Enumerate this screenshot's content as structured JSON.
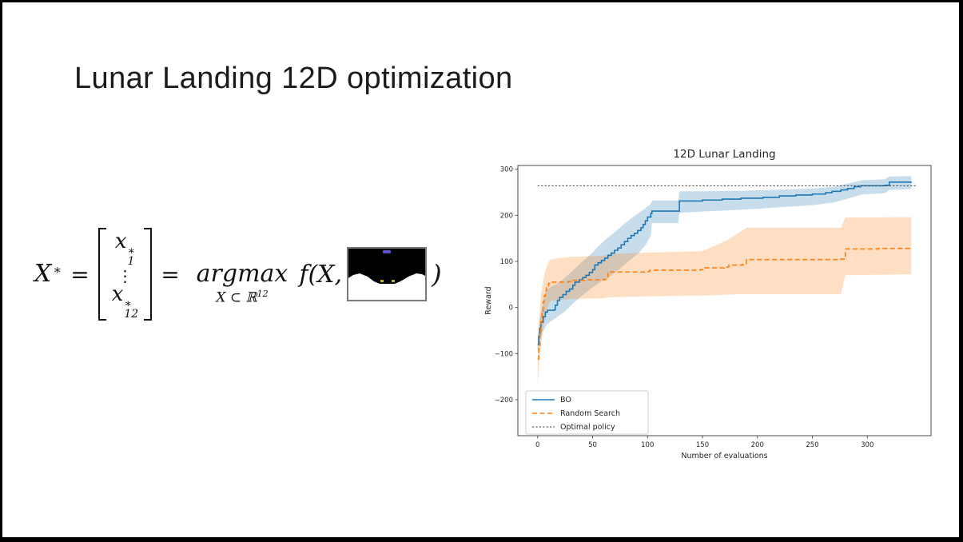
{
  "slide": {
    "title": "Lunar Landing 12D optimization",
    "formula": {
      "lhs_base": "X",
      "lhs_sup": "∗",
      "equals": "=",
      "vector": {
        "top": {
          "base": "x",
          "sup": "∗",
          "sub": "1"
        },
        "dots": "⋮",
        "bottom": {
          "base": "x",
          "sup": "∗",
          "sub": "12"
        }
      },
      "argmax": "argmax",
      "constraint_base": "X ⊂ ℝ",
      "constraint_sup": "12",
      "f_term": "f(X,",
      "close_paren": ")"
    },
    "lander_thumbnail": {
      "bg_color": "#000000",
      "terrain_color": "#ffffff",
      "lander_color": "#5c4fd0",
      "flag_color": "#b9b41e",
      "border_color": "#7a7a7a"
    }
  },
  "chart_data": {
    "type": "line",
    "title": "12D Lunar Landing",
    "xlabel": "Number of evaluations",
    "ylabel": "Reward",
    "xlim": [
      -18,
      358
    ],
    "ylim": [
      -278,
      308
    ],
    "xticks": [
      0,
      50,
      100,
      150,
      200,
      250,
      300
    ],
    "yticks": [
      -200,
      -100,
      0,
      100,
      200,
      300
    ],
    "grid": false,
    "legend_position": "lower left",
    "series": [
      {
        "name": "BO",
        "color": "#1f77b4",
        "line_style": "solid",
        "step": true,
        "points": [
          [
            0,
            -80
          ],
          [
            1,
            -62
          ],
          [
            2,
            -45
          ],
          [
            3,
            -32
          ],
          [
            5,
            -20
          ],
          [
            7,
            -10
          ],
          [
            9,
            -6
          ],
          [
            15,
            -5
          ],
          [
            16,
            5
          ],
          [
            18,
            15
          ],
          [
            20,
            22
          ],
          [
            23,
            28
          ],
          [
            26,
            35
          ],
          [
            29,
            40
          ],
          [
            32,
            48
          ],
          [
            34,
            55
          ],
          [
            38,
            60
          ],
          [
            41,
            65
          ],
          [
            44,
            70
          ],
          [
            47,
            76
          ],
          [
            50,
            82
          ],
          [
            52,
            92
          ],
          [
            55,
            97
          ],
          [
            58,
            102
          ],
          [
            61,
            107
          ],
          [
            64,
            113
          ],
          [
            67,
            118
          ],
          [
            70,
            124
          ],
          [
            73,
            129
          ],
          [
            76,
            136
          ],
          [
            79,
            143
          ],
          [
            82,
            150
          ],
          [
            85,
            156
          ],
          [
            88,
            161
          ],
          [
            91,
            167
          ],
          [
            94,
            173
          ],
          [
            96,
            180
          ],
          [
            98,
            188
          ],
          [
            100,
            196
          ],
          [
            103,
            204
          ],
          [
            104,
            209
          ],
          [
            128,
            209
          ],
          [
            129,
            231
          ],
          [
            150,
            233
          ],
          [
            168,
            235
          ],
          [
            185,
            237
          ],
          [
            205,
            239
          ],
          [
            220,
            242
          ],
          [
            235,
            244
          ],
          [
            250,
            246
          ],
          [
            262,
            249
          ],
          [
            268,
            252
          ],
          [
            276,
            255
          ],
          [
            282,
            258
          ],
          [
            288,
            262
          ],
          [
            294,
            264
          ],
          [
            316,
            265
          ],
          [
            320,
            272
          ],
          [
            340,
            273
          ]
        ],
        "band": {
          "fill_opacity": 0.25,
          "x": [
            0,
            2,
            5,
            8,
            12,
            18,
            25,
            32,
            40,
            48,
            55,
            62,
            70,
            78,
            85,
            92,
            98,
            103,
            104,
            128,
            129,
            150,
            175,
            200,
            225,
            250,
            270,
            285,
            295,
            316,
            320,
            340
          ],
          "lower": [
            -95,
            -75,
            -52,
            -38,
            -30,
            -20,
            -8,
            8,
            25,
            40,
            52,
            62,
            75,
            90,
            105,
            118,
            135,
            155,
            183,
            183,
            205,
            208,
            211,
            214,
            218,
            222,
            228,
            238,
            245,
            248,
            255,
            257
          ],
          "upper": [
            -62,
            -25,
            15,
            38,
            45,
            52,
            65,
            80,
            98,
            115,
            132,
            148,
            163,
            180,
            193,
            205,
            215,
            225,
            232,
            232,
            252,
            252,
            253,
            254,
            256,
            258,
            262,
            270,
            276,
            278,
            284,
            285
          ]
        }
      },
      {
        "name": "Random Search",
        "color": "#ff7f0e",
        "line_style": "dashed",
        "step": true,
        "points": [
          [
            0,
            -112
          ],
          [
            1,
            -85
          ],
          [
            2,
            -55
          ],
          [
            3,
            -30
          ],
          [
            4,
            -8
          ],
          [
            5,
            12
          ],
          [
            6,
            25
          ],
          [
            7,
            36
          ],
          [
            8,
            45
          ],
          [
            10,
            52
          ],
          [
            12,
            55
          ],
          [
            28,
            56
          ],
          [
            32,
            59
          ],
          [
            45,
            60
          ],
          [
            60,
            61
          ],
          [
            64,
            77
          ],
          [
            98,
            78
          ],
          [
            102,
            81
          ],
          [
            148,
            82
          ],
          [
            152,
            86
          ],
          [
            170,
            88
          ],
          [
            174,
            92
          ],
          [
            186,
            93
          ],
          [
            190,
            104
          ],
          [
            276,
            105
          ],
          [
            280,
            127
          ],
          [
            310,
            128
          ],
          [
            340,
            130
          ]
        ],
        "band": {
          "fill_opacity": 0.25,
          "x": [
            0,
            1,
            3,
            6,
            9,
            12,
            30,
            60,
            64,
            98,
            148,
            152,
            174,
            190,
            276,
            280,
            340
          ],
          "lower": [
            -170,
            -140,
            -80,
            -30,
            0,
            15,
            18,
            20,
            22,
            24,
            26,
            26,
            28,
            29,
            29,
            70,
            72
          ],
          "upper": [
            -90,
            -40,
            30,
            70,
            95,
            105,
            110,
            112,
            116,
            119,
            122,
            124,
            148,
            173,
            173,
            195,
            196
          ]
        }
      },
      {
        "name": "Optimal policy",
        "color": "#3a3a3a",
        "line_style": "dotted",
        "step": false,
        "points": [
          [
            0,
            264
          ],
          [
            345,
            264
          ]
        ]
      }
    ]
  }
}
